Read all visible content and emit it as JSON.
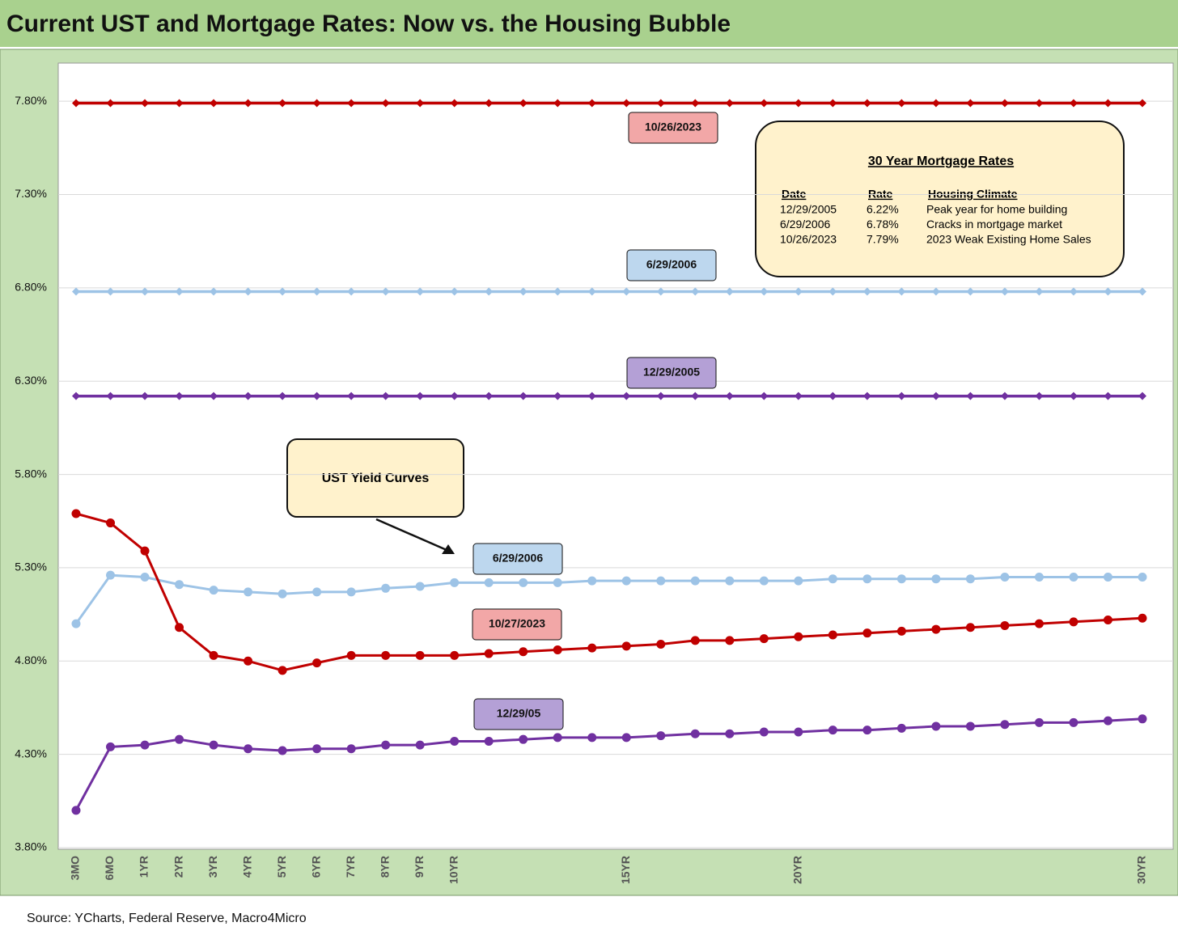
{
  "chart_data": {
    "type": "line",
    "title": "Current UST and Mortgage Rates: Now vs. the Housing Bubble",
    "source": "Source: YCharts, Federal Reserve, Macro4Micro",
    "callout": "UST Yield Curves",
    "mortgage_box": {
      "title": "30 Year Mortgage Rates",
      "headers": [
        "Date",
        "Rate",
        "Housing Climate"
      ],
      "rows": [
        [
          "12/29/2005",
          "6.22%",
          "Peak year for home building"
        ],
        [
          "6/29/2006",
          "6.78%",
          "Cracks in mortgage market"
        ],
        [
          "10/26/2023",
          "7.79%",
          "2023 Weak Existing Home Sales"
        ]
      ]
    },
    "categories": [
      "3MO",
      "6MO",
      "1YR",
      "2YR",
      "3YR",
      "4YR",
      "5YR",
      "6YR",
      "7YR",
      "8YR",
      "9YR",
      "10YR",
      null,
      null,
      null,
      null,
      "15YR",
      null,
      null,
      null,
      null,
      "20YR",
      null,
      null,
      null,
      null,
      null,
      null,
      null,
      null,
      null,
      "30YR"
    ],
    "ylim": [
      3.8,
      8.0
    ],
    "yticks": [
      {
        "value": 3.8,
        "label": "3.80%"
      },
      {
        "value": 4.3,
        "label": "4.30%"
      },
      {
        "value": 4.8,
        "label": "4.80%"
      },
      {
        "value": 5.3,
        "label": "5.30%"
      },
      {
        "value": 5.8,
        "label": "5.80%"
      },
      {
        "value": 6.3,
        "label": "6.30%"
      },
      {
        "value": 6.8,
        "label": "6.80%"
      },
      {
        "value": 7.3,
        "label": "7.30%"
      },
      {
        "value": 7.8,
        "label": "7.80%"
      }
    ],
    "grid": true,
    "series": [
      {
        "name": "10/26/2023",
        "color": "#c00000",
        "label_color": "#f2a7a7",
        "marker": "diamond",
        "values": [
          7.79,
          7.79,
          7.79,
          7.79,
          7.79,
          7.79,
          7.79,
          7.79,
          7.79,
          7.79,
          7.79,
          7.79,
          7.79,
          7.79,
          7.79,
          7.79,
          7.79,
          7.79,
          7.79,
          7.79,
          7.79,
          7.79,
          7.79,
          7.79,
          7.79,
          7.79,
          7.79,
          7.79,
          7.79,
          7.79,
          7.79,
          7.79
        ]
      },
      {
        "name": "6/29/2006",
        "color": "#9dc3e6",
        "label_color": "#bdd7ee",
        "marker": "diamond",
        "values": [
          6.78,
          6.78,
          6.78,
          6.78,
          6.78,
          6.78,
          6.78,
          6.78,
          6.78,
          6.78,
          6.78,
          6.78,
          6.78,
          6.78,
          6.78,
          6.78,
          6.78,
          6.78,
          6.78,
          6.78,
          6.78,
          6.78,
          6.78,
          6.78,
          6.78,
          6.78,
          6.78,
          6.78,
          6.78,
          6.78,
          6.78,
          6.78
        ]
      },
      {
        "name": "12/29/2005",
        "color": "#7030a0",
        "label_color": "#b4a0d6",
        "marker": "diamond",
        "values": [
          6.22,
          6.22,
          6.22,
          6.22,
          6.22,
          6.22,
          6.22,
          6.22,
          6.22,
          6.22,
          6.22,
          6.22,
          6.22,
          6.22,
          6.22,
          6.22,
          6.22,
          6.22,
          6.22,
          6.22,
          6.22,
          6.22,
          6.22,
          6.22,
          6.22,
          6.22,
          6.22,
          6.22,
          6.22,
          6.22,
          6.22,
          6.22
        ]
      },
      {
        "name": "6/29/2006",
        "color": "#9dc3e6",
        "label_color": "#bdd7ee",
        "marker": "circle",
        "values": [
          5.0,
          5.26,
          5.25,
          5.21,
          5.18,
          5.17,
          5.16,
          5.17,
          5.17,
          5.19,
          5.2,
          5.22,
          5.22,
          5.22,
          5.22,
          5.23,
          5.23,
          5.23,
          5.23,
          5.23,
          5.23,
          5.23,
          5.24,
          5.24,
          5.24,
          5.24,
          5.24,
          5.25,
          5.25,
          5.25,
          5.25,
          5.25
        ]
      },
      {
        "name": "10/27/2023",
        "color": "#c00000",
        "label_color": "#f2a7a7",
        "marker": "circle",
        "values": [
          5.59,
          5.54,
          5.39,
          4.98,
          4.83,
          4.8,
          4.75,
          4.79,
          4.83,
          4.83,
          4.83,
          4.83,
          4.84,
          4.85,
          4.86,
          4.87,
          4.88,
          4.89,
          4.91,
          4.91,
          4.92,
          4.93,
          4.94,
          4.95,
          4.96,
          4.97,
          4.98,
          4.99,
          5.0,
          5.01,
          5.02,
          5.03
        ]
      },
      {
        "name": "12/29/05",
        "color": "#7030a0",
        "label_color": "#b4a0d6",
        "marker": "circle",
        "values": [
          4.0,
          4.34,
          4.35,
          4.38,
          4.35,
          4.33,
          4.32,
          4.33,
          4.33,
          4.35,
          4.35,
          4.37,
          4.37,
          4.38,
          4.39,
          4.39,
          4.39,
          4.4,
          4.41,
          4.41,
          4.42,
          4.42,
          4.43,
          4.43,
          4.44,
          4.45,
          4.45,
          4.46,
          4.47,
          4.47,
          4.48,
          4.49
        ]
      }
    ]
  }
}
